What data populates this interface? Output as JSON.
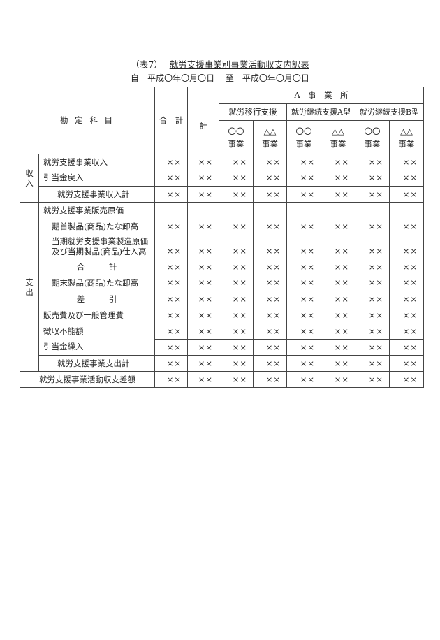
{
  "header": {
    "table_no": "（表7）",
    "title": "就労支援事業別事業活動収支内訳表",
    "period_from_label": "自",
    "period_from": "平成〇年〇月〇日",
    "period_to_label": "至",
    "period_to": "平成〇年〇月〇日"
  },
  "columns": {
    "account": "勘 定 科 目",
    "total": "合　計",
    "subtotal": "計",
    "office": "A　事　業　所",
    "groups": [
      "就労移行支援",
      "就労継続支援A型",
      "就労継続支援B型"
    ],
    "businesses": [
      "〇〇\n事業",
      "△△\n事業",
      "〇〇\n事業",
      "△△\n事業",
      "〇〇\n事業",
      "△△\n事業"
    ]
  },
  "sections": [
    {
      "label": "収入",
      "rows": [
        {
          "label": "就労支援事業収入",
          "values": [
            "××",
            "××",
            "××",
            "××",
            "××",
            "××",
            "××",
            "××"
          ]
        },
        {
          "label": "引当金戻入",
          "values": [
            "××",
            "××",
            "××",
            "××",
            "××",
            "××",
            "××",
            "××"
          ]
        },
        {
          "label": "就労支援事業収入計",
          "values": [
            "××",
            "××",
            "××",
            "××",
            "××",
            "××",
            "××",
            "××"
          ]
        }
      ]
    },
    {
      "label": "支出",
      "rows": [
        {
          "label": "就労支援事業販売原価",
          "values": [
            "",
            "",
            "",
            "",
            "",
            "",
            "",
            ""
          ]
        },
        {
          "label": "期首製品(商品)たな卸高",
          "values": [
            "××",
            "××",
            "××",
            "××",
            "××",
            "××",
            "××",
            "××"
          ]
        },
        {
          "label": "当期就労支援事業製造原価\n及び当期製品(商品)仕入高",
          "values": [
            "××",
            "××",
            "××",
            "××",
            "××",
            "××",
            "××",
            "××"
          ]
        },
        {
          "label": "合　　　計",
          "values": [
            "××",
            "××",
            "××",
            "××",
            "××",
            "××",
            "××",
            "××"
          ]
        },
        {
          "label": "期末製品(商品)たな卸高",
          "values": [
            "××",
            "××",
            "××",
            "××",
            "××",
            "××",
            "××",
            "××"
          ]
        },
        {
          "label": "差　　　引",
          "values": [
            "××",
            "××",
            "××",
            "××",
            "××",
            "××",
            "××",
            "××"
          ]
        },
        {
          "label": "販売費及び一般管理費",
          "values": [
            "××",
            "××",
            "××",
            "××",
            "××",
            "××",
            "××",
            "××"
          ]
        },
        {
          "label": "徴収不能額",
          "values": [
            "××",
            "××",
            "××",
            "××",
            "××",
            "××",
            "××",
            "××"
          ]
        },
        {
          "label": "引当金繰入",
          "values": [
            "××",
            "××",
            "××",
            "××",
            "××",
            "××",
            "××",
            "××"
          ]
        },
        {
          "label": "就労支援事業支出計",
          "values": [
            "××",
            "××",
            "××",
            "××",
            "××",
            "××",
            "××",
            "××"
          ]
        }
      ]
    }
  ],
  "footer_row": {
    "label": "就労支援事業活動収支差額",
    "values": [
      "××",
      "××",
      "××",
      "××",
      "××",
      "××",
      "××",
      "××"
    ]
  }
}
